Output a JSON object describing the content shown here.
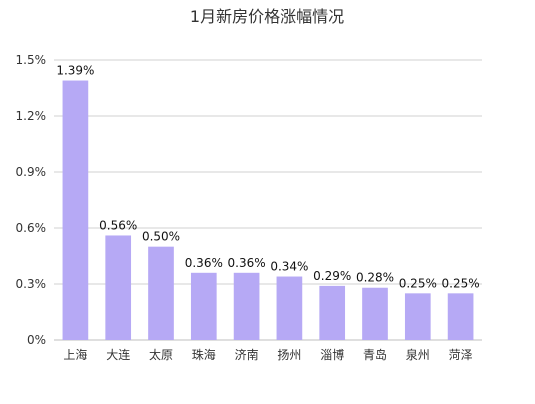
{
  "chart_data": {
    "type": "bar",
    "title": "1月新房价格涨幅情况",
    "xlabel": "",
    "ylabel": "",
    "categories": [
      "上海",
      "大连",
      "太原",
      "珠海",
      "济南",
      "扬州",
      "淄博",
      "青岛",
      "泉州",
      "菏泽"
    ],
    "values": [
      1.39,
      0.56,
      0.5,
      0.36,
      0.36,
      0.34,
      0.29,
      0.28,
      0.25,
      0.25
    ],
    "data_labels": [
      "1.39%",
      "0.56%",
      "0.50%",
      "0.36%",
      "0.36%",
      "0.34%",
      "0.29%",
      "0.28%",
      "0.25%",
      "0.25%"
    ],
    "ylim": [
      0,
      1.5
    ],
    "yticks": [
      0,
      0.3,
      0.6,
      0.9,
      1.2,
      1.5
    ],
    "ytick_labels": [
      "0%",
      "0.3%",
      "0.6%",
      "0.9%",
      "1.2%",
      "1.5%"
    ],
    "grid": true,
    "legend": "none",
    "bar_color": "#b6a9f5"
  }
}
